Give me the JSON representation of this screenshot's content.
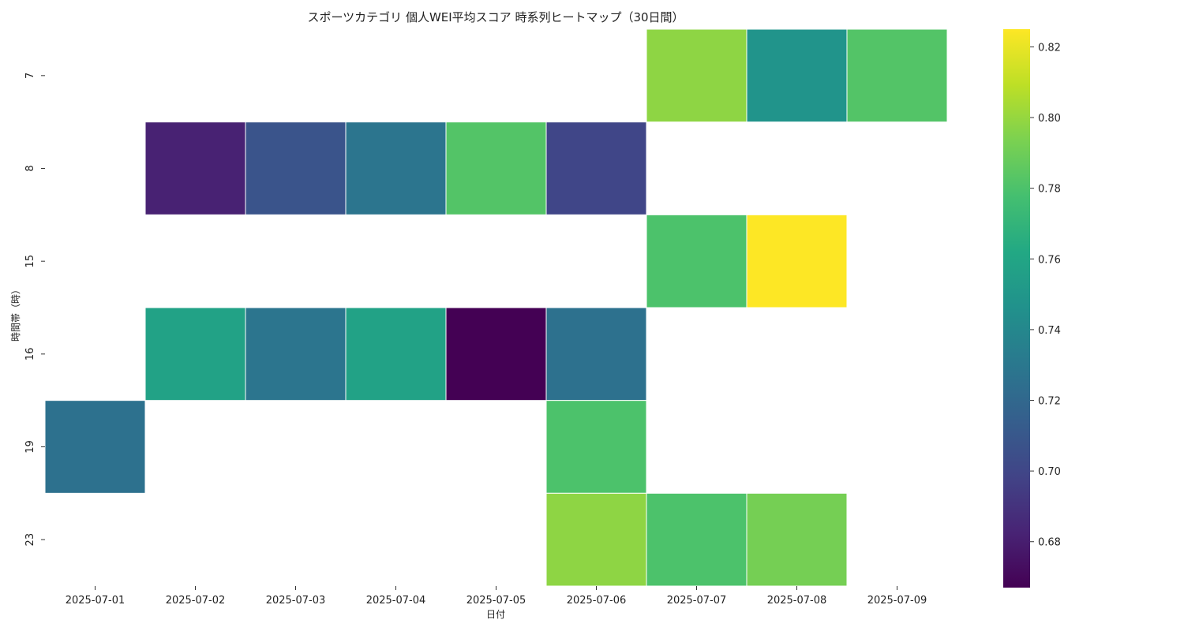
{
  "chart_data": {
    "type": "heatmap",
    "title": "スポーツカテゴリ 個人WEI平均スコア 時系列ヒートマップ（30日間）",
    "xlabel": "日付",
    "ylabel": "時間帯（時）",
    "x": [
      "2025-07-01",
      "2025-07-02",
      "2025-07-03",
      "2025-07-04",
      "2025-07-05",
      "2025-07-06",
      "2025-07-07",
      "2025-07-08",
      "2025-07-09"
    ],
    "y": [
      "7",
      "8",
      "15",
      "16",
      "19",
      "23"
    ],
    "values": [
      [
        null,
        null,
        null,
        null,
        null,
        null,
        0.798,
        0.748,
        0.782
      ],
      [
        null,
        0.682,
        0.708,
        0.728,
        0.782,
        0.7,
        null,
        null,
        null
      ],
      [
        null,
        null,
        null,
        null,
        null,
        null,
        0.78,
        0.825,
        null
      ],
      [
        null,
        0.758,
        0.728,
        0.758,
        0.667,
        0.726,
        null,
        null,
        null
      ],
      [
        0.726,
        null,
        null,
        null,
        null,
        0.78,
        null,
        null,
        null
      ],
      [
        null,
        null,
        null,
        null,
        null,
        0.798,
        0.78,
        0.792,
        null
      ]
    ],
    "colormap": "viridis",
    "colorbar": {
      "min": 0.667,
      "max": 0.825,
      "ticks": [
        "0.68",
        "0.70",
        "0.72",
        "0.74",
        "0.76",
        "0.78",
        "0.80",
        "0.82"
      ]
    }
  }
}
